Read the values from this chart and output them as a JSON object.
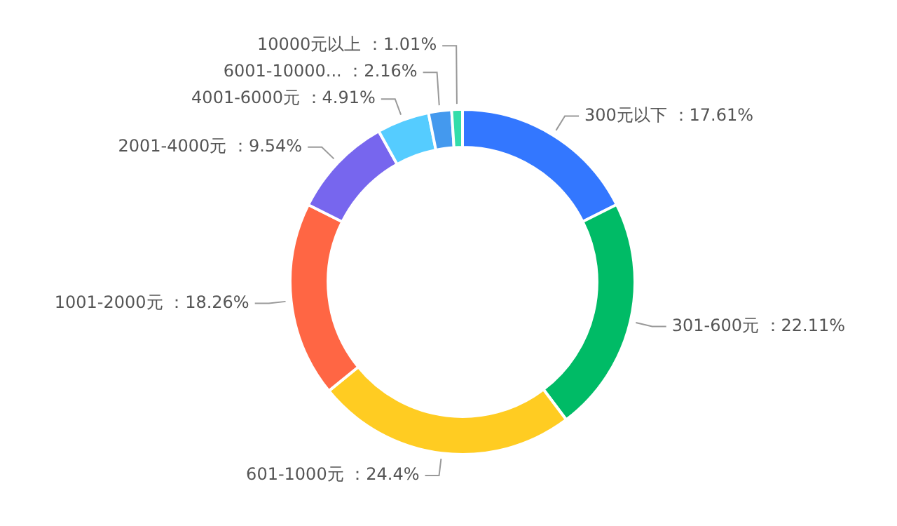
{
  "chart_data": {
    "type": "donut",
    "categories": [
      "300元以下",
      "301-600元",
      "601-1000元",
      "1001-2000元",
      "2001-4000元",
      "4001-6000元",
      "6001-10000...",
      "10000元以上"
    ],
    "values": [
      17.61,
      22.11,
      24.4,
      18.26,
      9.54,
      4.91,
      2.16,
      1.01
    ],
    "value_labels": [
      "17.61%",
      "22.11%",
      "24.4%",
      "18.26%",
      "9.54%",
      "4.91%",
      "2.16%",
      "1.01%"
    ],
    "colors": [
      "#3377ff",
      "#00bb66",
      "#ffcc22",
      "#ff6644",
      "#7766ee",
      "#55ccff",
      "#4499ee",
      "#33ddaa"
    ],
    "legend": false
  }
}
